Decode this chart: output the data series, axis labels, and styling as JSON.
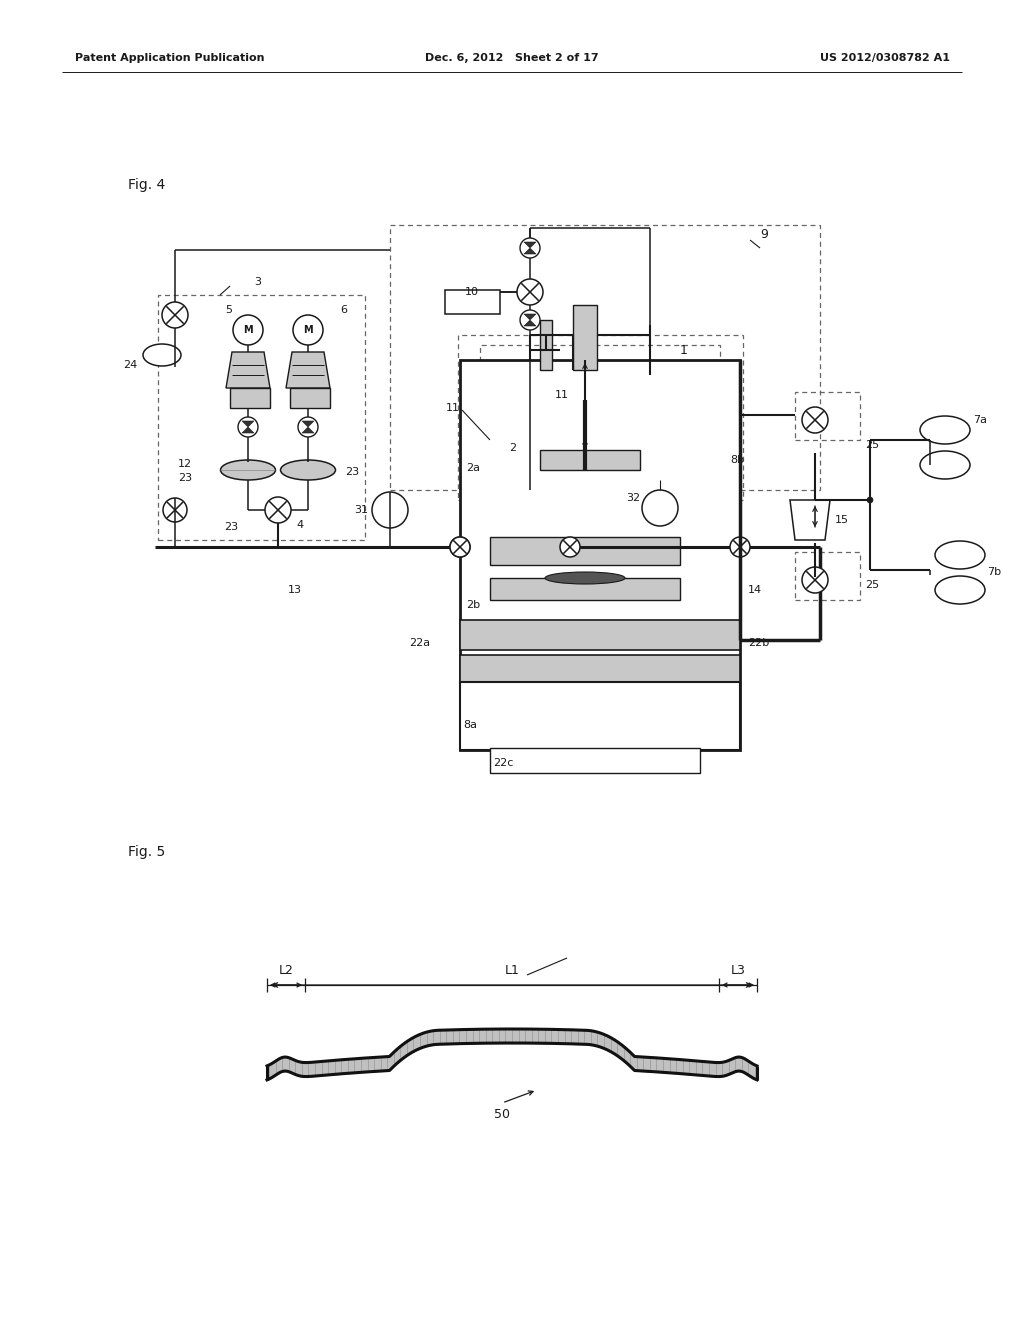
{
  "bg_color": "#ffffff",
  "lc": "#1a1a1a",
  "dc": "#666666",
  "gray_fill": "#c8c8c8",
  "header_left": "Patent Application Publication",
  "header_mid": "Dec. 6, 2012   Sheet 2 of 17",
  "header_right": "US 2012/0308782 A1",
  "fig4_label": "Fig. 4",
  "fig5_label": "Fig. 5"
}
